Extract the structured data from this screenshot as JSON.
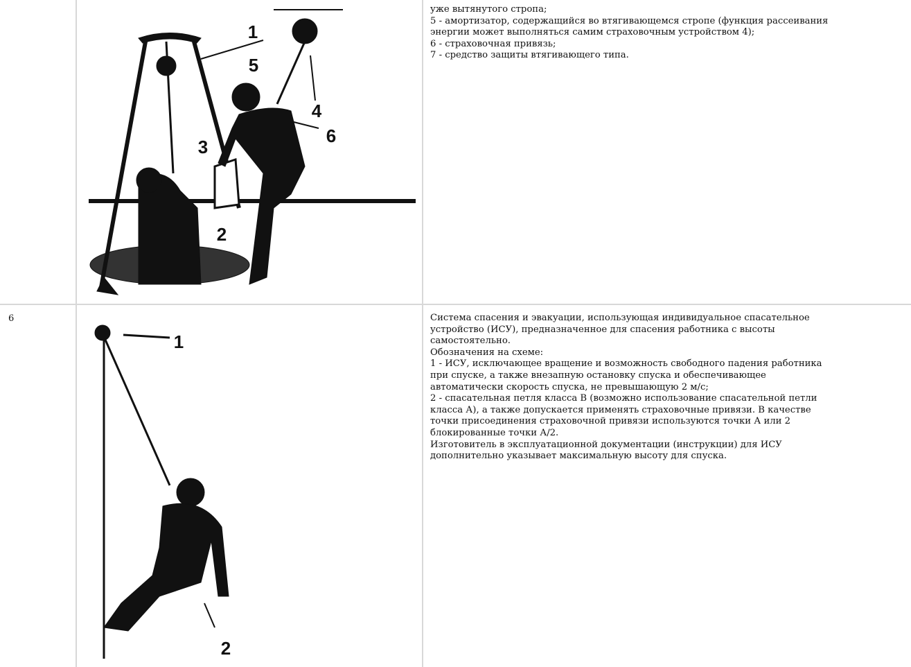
{
  "table": {
    "rows": [
      {
        "figure_labels": [
          "1",
          "2",
          "3",
          "4",
          "5",
          "6"
        ],
        "description": [
          "уже вытянутого стропа;",
          "5 - амортизатор, содержащийся во втягивающемся стропе (функция рассеивания",
          "энергии может выполняться самим страховочным устройством 4);",
          "6 - страховочная привязь;",
          "7 - средство защиты втягивающего типа."
        ]
      },
      {
        "number": "6",
        "figure_labels": [
          "1",
          "2"
        ],
        "description": [
          "Система спасения и эвакуации, использующая индивидуальное спасательное",
          "устройство (ИСУ), предназначенное для спасения работника с высоты",
          "самостоятельно.",
          "Обозначения на схеме:",
          "1 - ИСУ, исключающее вращение и возможность свободного падения работника",
          "при спуске, а также внезапную остановку спуска и обеспечивающее",
          "автоматически скорость спуска, не превышающую 2 м/с;",
          "2 - спасательная петля класса В (возможно использование спасательной петли",
          "класса А), а также допускается применять страховочные привязи. В качестве",
          "точки присоединения страховочной привязи используются точки А или 2",
          "блокированные точки А/2.",
          "Изготовитель в эксплуатационной документации (инструкции) для ИСУ",
          "дополнительно указывает максимальную высоту для спуска."
        ]
      }
    ]
  }
}
